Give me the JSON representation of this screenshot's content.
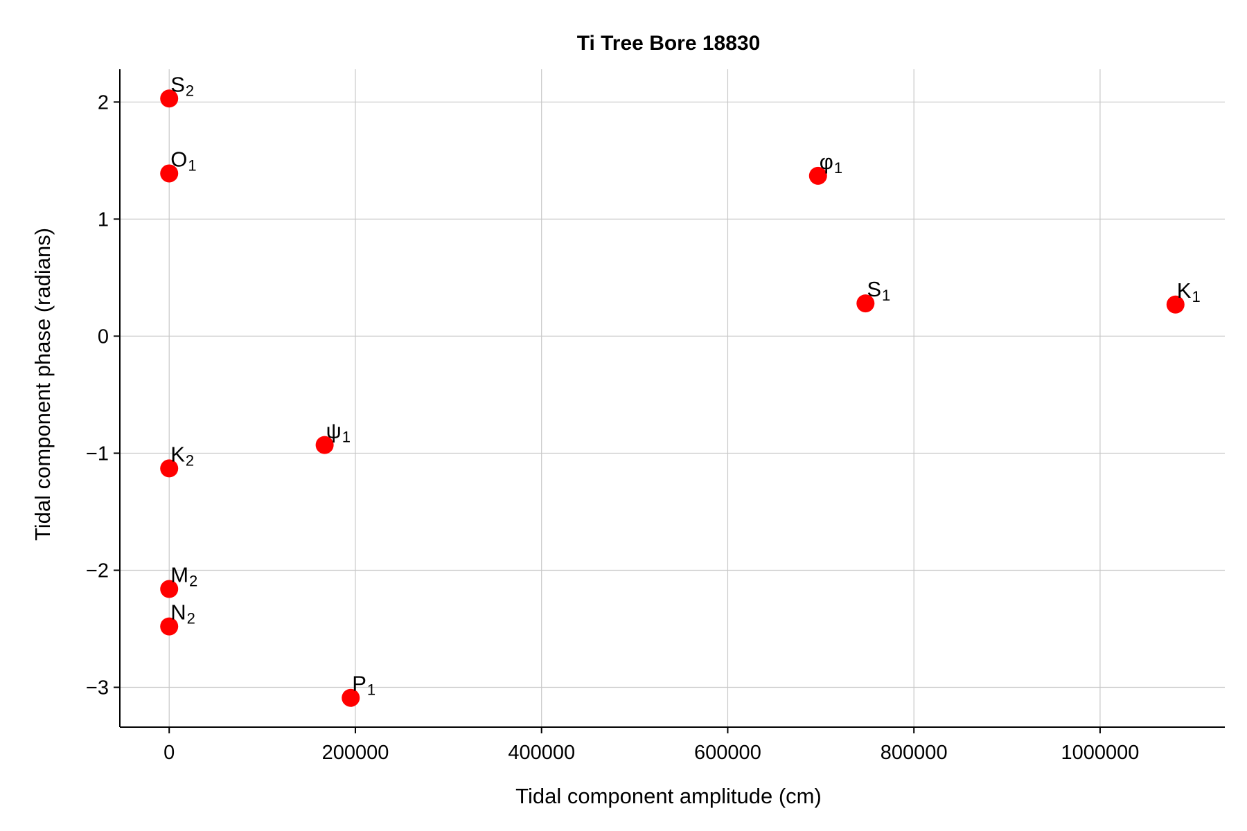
{
  "chart_data": {
    "type": "scatter",
    "title": "Ti Tree Bore 18830",
    "xlabel": "Tidal component amplitude (cm)",
    "ylabel": "Tidal component phase (radians)",
    "xlim": [
      -53000,
      1134000
    ],
    "ylim": [
      -3.34,
      2.28
    ],
    "xticks": [
      0,
      200000,
      400000,
      600000,
      800000,
      1000000
    ],
    "yticks": [
      2,
      1,
      0,
      -1,
      -2,
      -3
    ],
    "xtick_labels": [
      "0",
      "200000",
      "400000",
      "600000",
      "800000",
      "1000000"
    ],
    "ytick_labels": [
      "2",
      "1",
      "0",
      "−1",
      "−2",
      "−3"
    ],
    "grid": true,
    "marker_color": "#ff0000",
    "points": [
      {
        "label": "S",
        "sub": "2",
        "x": 0,
        "y": 2.03
      },
      {
        "label": "O",
        "sub": "1",
        "x": 0,
        "y": 1.39
      },
      {
        "label": "φ",
        "sub": "1",
        "x": 697000,
        "y": 1.37
      },
      {
        "label": "S",
        "sub": "1",
        "x": 748000,
        "y": 0.28
      },
      {
        "label": "K",
        "sub": "1",
        "x": 1081000,
        "y": 0.27
      },
      {
        "label": "ψ",
        "sub": "1",
        "x": 167000,
        "y": -0.93
      },
      {
        "label": "K",
        "sub": "2",
        "x": 0,
        "y": -1.13
      },
      {
        "label": "M",
        "sub": "2",
        "x": 0,
        "y": -2.16
      },
      {
        "label": "N",
        "sub": "2",
        "x": 0,
        "y": -2.48
      },
      {
        "label": "P",
        "sub": "1",
        "x": 195000,
        "y": -3.09
      }
    ]
  }
}
